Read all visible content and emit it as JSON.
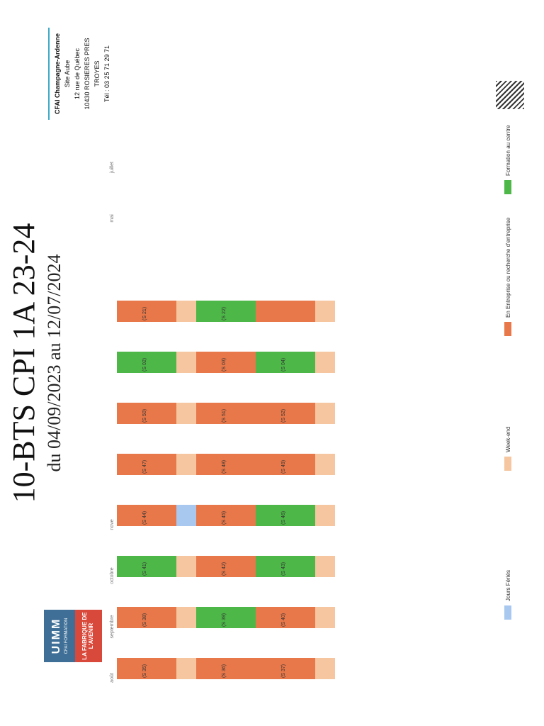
{
  "title": "10-BTS CPI 1A 23-24",
  "subtitle": "du 04/09/2023 au 12/07/2024",
  "logo": {
    "top": "UIMM",
    "sub": "CFAI FORMATION",
    "bottom": "LA FABRIQUE DE L'AVENIR"
  },
  "address": {
    "name": "CFAI Champagne-Ardenne",
    "site": "Site Aube",
    "street": "12 rue de Québec",
    "city": "10430 ROSIERES PRES TROYES",
    "tel": "Tél : 03 25 71 29 71"
  },
  "months": [
    "août",
    "septembre",
    "octobre",
    "nove",
    "",
    "",
    "",
    "",
    "",
    "mai",
    "juillet"
  ],
  "week_labels": [
    "(S 35)",
    "(S 36)",
    "(S 37)",
    "(S 38)",
    "(S 39)",
    "(S 40)",
    "(S 41)",
    "(S 42)",
    "(S 43)",
    "(S 44)",
    "(S 45)",
    "(S 46)",
    "(S 47)",
    "(S 48)",
    "(S 49)",
    "(S 50)",
    "(S 51)",
    "(S 52)",
    "(S 02)",
    "(S 03)",
    "(S 04)",
    "(S 21)",
    "(S 22)"
  ],
  "legend": {
    "holidays": "Jours Fériés",
    "weekend": "Week-end",
    "company": "En Entreprise ou recherche d'entreprise",
    "training": "Formation au centre"
  },
  "colors": {
    "company": "#e8784a",
    "weekend": "#f5c6a0",
    "training": "#4db848",
    "holiday": "#a9c8f0"
  }
}
